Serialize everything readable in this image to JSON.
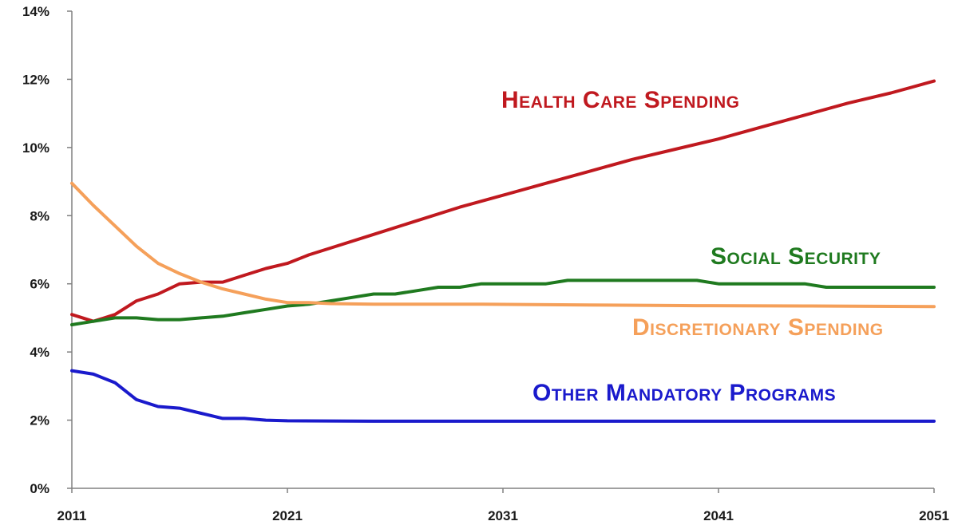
{
  "chart_data": {
    "type": "line",
    "title": "",
    "xlabel": "",
    "ylabel": "",
    "xlim": [
      2011,
      2051
    ],
    "ylim": [
      0,
      14
    ],
    "grid": false,
    "x_ticks": [
      "2011",
      "2021",
      "2031",
      "2041",
      "2051"
    ],
    "y_ticks": [
      "0%",
      "2%",
      "4%",
      "6%",
      "8%",
      "10%",
      "12%",
      "14%"
    ],
    "series": [
      {
        "name": "Health Care Spending",
        "color": "#c0191f",
        "label_position": "upper middle",
        "x": [
          2011,
          2012,
          2013,
          2014,
          2015,
          2016,
          2017,
          2018,
          2019,
          2020,
          2021,
          2022,
          2023,
          2025,
          2027,
          2029,
          2031,
          2033,
          2035,
          2037,
          2039,
          2041,
          2043,
          2045,
          2047,
          2049,
          2051
        ],
        "values": [
          5.1,
          4.9,
          5.1,
          5.5,
          5.7,
          6.0,
          6.05,
          6.05,
          6.25,
          6.45,
          6.6,
          6.85,
          7.05,
          7.45,
          7.85,
          8.25,
          8.6,
          8.95,
          9.3,
          9.65,
          9.95,
          10.25,
          10.6,
          10.95,
          11.3,
          11.6,
          11.95
        ]
      },
      {
        "name": "Social Security",
        "color": "#1f7a1f",
        "label_position": "right",
        "x": [
          2011,
          2012,
          2013,
          2014,
          2015,
          2016,
          2017,
          2018,
          2019,
          2020,
          2021,
          2022,
          2023,
          2024,
          2025,
          2026,
          2027,
          2028,
          2029,
          2030,
          2031,
          2032,
          2033,
          2034,
          2035,
          2036,
          2037,
          2038,
          2039,
          2040,
          2041,
          2042,
          2043,
          2044,
          2045,
          2046,
          2047,
          2048,
          2049,
          2050,
          2051
        ],
        "values": [
          4.8,
          4.9,
          5.0,
          5.0,
          4.95,
          4.95,
          5.0,
          5.05,
          5.15,
          5.25,
          5.35,
          5.4,
          5.5,
          5.6,
          5.7,
          5.7,
          5.8,
          5.9,
          5.9,
          6.0,
          6.0,
          6.0,
          6.0,
          6.1,
          6.1,
          6.1,
          6.1,
          6.1,
          6.1,
          6.1,
          6.0,
          6.0,
          6.0,
          6.0,
          6.0,
          5.9,
          5.9,
          5.9,
          5.9,
          5.9,
          5.9
        ]
      },
      {
        "name": "Discretionary Spending",
        "color": "#f5a05a",
        "label_position": "right",
        "x": [
          2011,
          2012,
          2013,
          2014,
          2015,
          2016,
          2017,
          2018,
          2019,
          2020,
          2021,
          2022,
          2023,
          2025,
          2030,
          2035,
          2040,
          2045,
          2051
        ],
        "values": [
          8.95,
          8.3,
          7.7,
          7.1,
          6.6,
          6.3,
          6.05,
          5.85,
          5.7,
          5.55,
          5.45,
          5.45,
          5.42,
          5.4,
          5.4,
          5.38,
          5.36,
          5.35,
          5.33
        ]
      },
      {
        "name": "Other Mandatory Programs",
        "color": "#1a1acc",
        "label_position": "bottom right",
        "x": [
          2011,
          2012,
          2013,
          2014,
          2015,
          2016,
          2017,
          2018,
          2019,
          2020,
          2021,
          2025,
          2030,
          2040,
          2051
        ],
        "values": [
          3.45,
          3.35,
          3.1,
          2.6,
          2.4,
          2.35,
          2.2,
          2.05,
          2.05,
          2.0,
          1.98,
          1.97,
          1.97,
          1.97,
          1.97
        ]
      }
    ]
  }
}
